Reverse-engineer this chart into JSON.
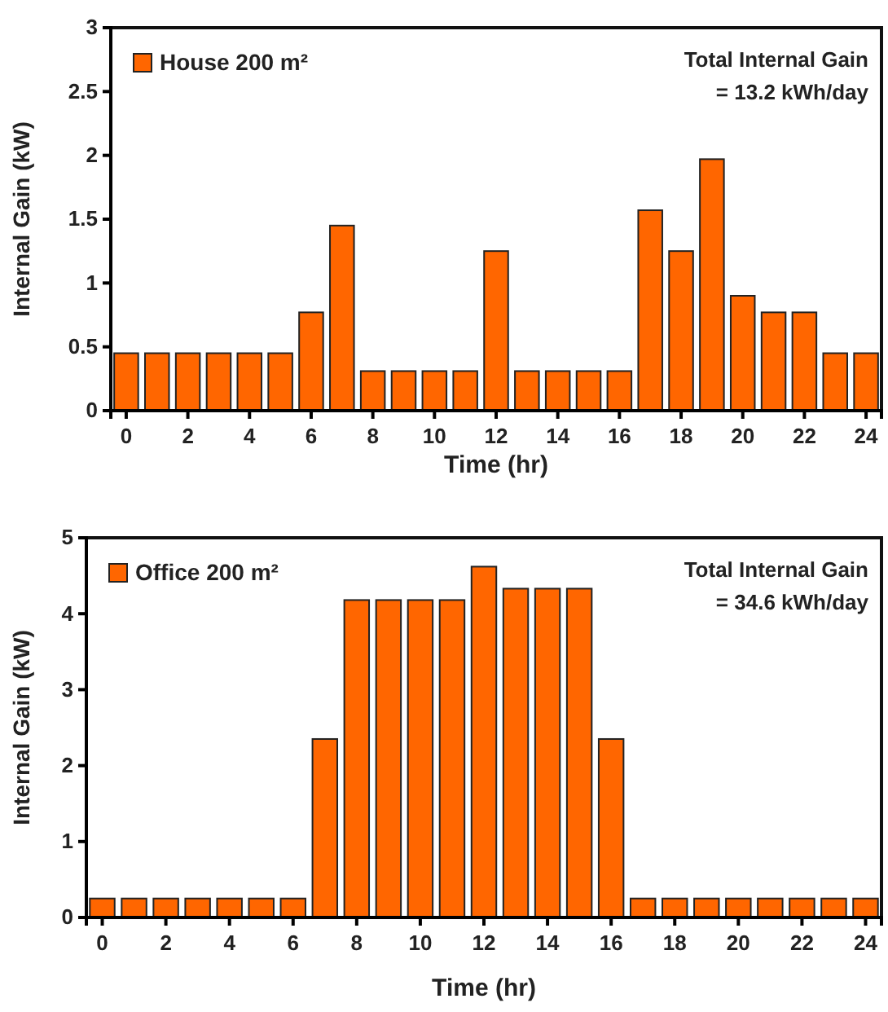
{
  "chart_data": [
    {
      "type": "bar",
      "xlabel": "Time (hr)",
      "ylabel": "Internal Gain  (kW)",
      "x": [
        0,
        1,
        2,
        3,
        4,
        5,
        6,
        7,
        8,
        9,
        10,
        11,
        12,
        13,
        14,
        15,
        16,
        17,
        18,
        19,
        20,
        21,
        22,
        23,
        24
      ],
      "xlim": [
        -0.5,
        24.5
      ],
      "xticks": [
        0,
        2,
        4,
        6,
        8,
        10,
        12,
        14,
        16,
        18,
        20,
        22,
        24
      ],
      "series": [
        {
          "name": "House 200 m²",
          "color": "#ff6600",
          "values": [
            0.45,
            0.45,
            0.45,
            0.45,
            0.45,
            0.45,
            0.77,
            1.45,
            0.31,
            0.31,
            0.31,
            0.31,
            1.25,
            0.31,
            0.31,
            0.31,
            0.31,
            1.57,
            1.25,
            1.97,
            0.9,
            0.77,
            0.77,
            0.45,
            0.45
          ]
        }
      ],
      "ylim": [
        0,
        3
      ],
      "yticks": [
        0,
        0.5,
        1,
        1.5,
        2,
        2.5,
        3
      ],
      "legend": "top left",
      "grid": false,
      "annotations": [
        "Total Internal Gain",
        "= 13.2 kWh/day"
      ]
    },
    {
      "type": "bar",
      "xlabel": "Time (hr)",
      "ylabel": "Internal Gain  (kW)",
      "x": [
        0,
        1,
        2,
        3,
        4,
        5,
        6,
        7,
        8,
        9,
        10,
        11,
        12,
        13,
        14,
        15,
        16,
        17,
        18,
        19,
        20,
        21,
        22,
        23,
        24
      ],
      "xlim": [
        -0.5,
        24.5
      ],
      "xticks": [
        0,
        2,
        4,
        6,
        8,
        10,
        12,
        14,
        16,
        18,
        20,
        22,
        24
      ],
      "series": [
        {
          "name": "Office 200 m²",
          "color": "#ff6600",
          "values": [
            0.25,
            0.25,
            0.25,
            0.25,
            0.25,
            0.25,
            0.25,
            2.35,
            4.18,
            4.18,
            4.18,
            4.18,
            4.62,
            4.33,
            4.33,
            4.33,
            2.35,
            0.25,
            0.25,
            0.25,
            0.25,
            0.25,
            0.25,
            0.25,
            0.25
          ]
        }
      ],
      "ylim": [
        0,
        5
      ],
      "yticks": [
        0,
        1,
        2,
        3,
        4,
        5
      ],
      "legend": "top left",
      "grid": false,
      "annotations": [
        "Total Internal Gain",
        "= 34.6 kWh/day"
      ]
    }
  ]
}
